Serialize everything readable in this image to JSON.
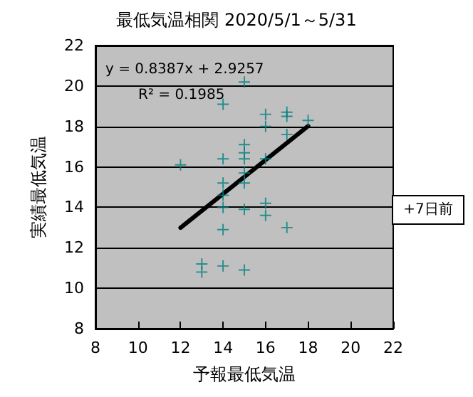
{
  "chart_data": {
    "type": "scatter",
    "title": "最低気温相関 2020/5/1～5/31",
    "xlabel": "予報最低気温",
    "ylabel": "実績最低気温",
    "annotations": [
      "y = 0.8387x + 2.9257",
      "R² = 0.1985",
      "+7日前"
    ],
    "series": [
      {
        "color": "#008080",
        "marker": "cross",
        "x": [
          15,
          14,
          16,
          16,
          17,
          17,
          18,
          17,
          15,
          15,
          15,
          14,
          12,
          16,
          15,
          14,
          15,
          14,
          14,
          15,
          16,
          16,
          14,
          17,
          13,
          13,
          14,
          15
        ],
        "values": [
          20.2,
          19.1,
          18.6,
          18.0,
          18.7,
          18.5,
          18.3,
          17.6,
          17.1,
          16.7,
          16.4,
          16.4,
          16.1,
          16.4,
          15.7,
          15.2,
          15.2,
          14.6,
          14.0,
          13.9,
          14.2,
          13.6,
          12.9,
          13.0,
          11.2,
          10.8,
          11.1,
          10.9
        ]
      },
      {
        "type": "line",
        "color": "#000000",
        "marker": "none",
        "x": [
          12,
          18
        ],
        "values": [
          12.99,
          18.02
        ]
      }
    ],
    "xlim": [
      8,
      22
    ],
    "xticks": [
      8,
      10,
      12,
      14,
      16,
      18,
      20,
      22
    ],
    "ylim": [
      8,
      22
    ],
    "yticks": [
      8,
      10,
      12,
      14,
      16,
      18,
      20,
      22
    ],
    "grid": "y"
  }
}
